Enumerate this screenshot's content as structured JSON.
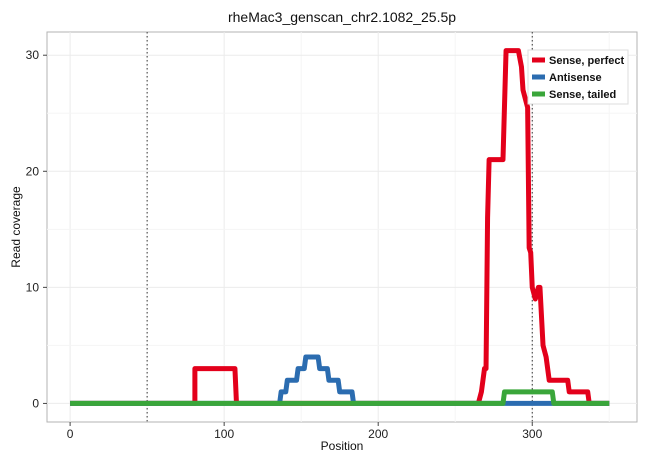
{
  "chart_data": {
    "type": "line",
    "title": "rheMac3_genscan_chr2.1082_25.5p",
    "xlabel": "Position",
    "ylabel": "Read coverage",
    "xlim": [
      -15,
      368
    ],
    "ylim": [
      -1.6,
      32
    ],
    "xticks": [
      0,
      100,
      200,
      300
    ],
    "yticks": [
      0,
      10,
      20,
      30
    ],
    "grid": true,
    "legend_position": "top-right",
    "vlines": [
      50,
      300
    ],
    "series": [
      {
        "name": "Sense, perfect",
        "color": "#e3001b",
        "points": [
          [
            0,
            0
          ],
          [
            81,
            0
          ],
          [
            81,
            3
          ],
          [
            107,
            3
          ],
          [
            108,
            0
          ],
          [
            265,
            0
          ],
          [
            267,
            1
          ],
          [
            269,
            3
          ],
          [
            270,
            3
          ],
          [
            271,
            16
          ],
          [
            272,
            21
          ],
          [
            281,
            21
          ],
          [
            283,
            30.4
          ],
          [
            291,
            30.4
          ],
          [
            293,
            29
          ],
          [
            294,
            27
          ],
          [
            297,
            25.5
          ],
          [
            298,
            13.4
          ],
          [
            299,
            13
          ],
          [
            300,
            10
          ],
          [
            302,
            9
          ],
          [
            304,
            10
          ],
          [
            305,
            10
          ],
          [
            307,
            5
          ],
          [
            309,
            4
          ],
          [
            311,
            2
          ],
          [
            323,
            2
          ],
          [
            324,
            1
          ],
          [
            336,
            1
          ],
          [
            337,
            0
          ],
          [
            350,
            0
          ]
        ]
      },
      {
        "name": "Antisense",
        "color": "#2b6cb0",
        "points": [
          [
            0,
            0
          ],
          [
            136,
            0
          ],
          [
            137,
            1
          ],
          [
            140,
            1
          ],
          [
            141,
            2
          ],
          [
            147,
            2
          ],
          [
            148,
            3
          ],
          [
            152,
            3
          ],
          [
            153,
            4
          ],
          [
            161,
            4
          ],
          [
            162,
            3
          ],
          [
            167,
            3
          ],
          [
            168,
            2
          ],
          [
            174,
            2
          ],
          [
            175,
            1
          ],
          [
            183,
            1
          ],
          [
            184,
            0
          ],
          [
            350,
            0
          ]
        ]
      },
      {
        "name": "Sense, tailed",
        "color": "#3aa63a",
        "points": [
          [
            0,
            0
          ],
          [
            281,
            0
          ],
          [
            282,
            1
          ],
          [
            313,
            1
          ],
          [
            314,
            0
          ],
          [
            350,
            0
          ]
        ]
      }
    ]
  }
}
